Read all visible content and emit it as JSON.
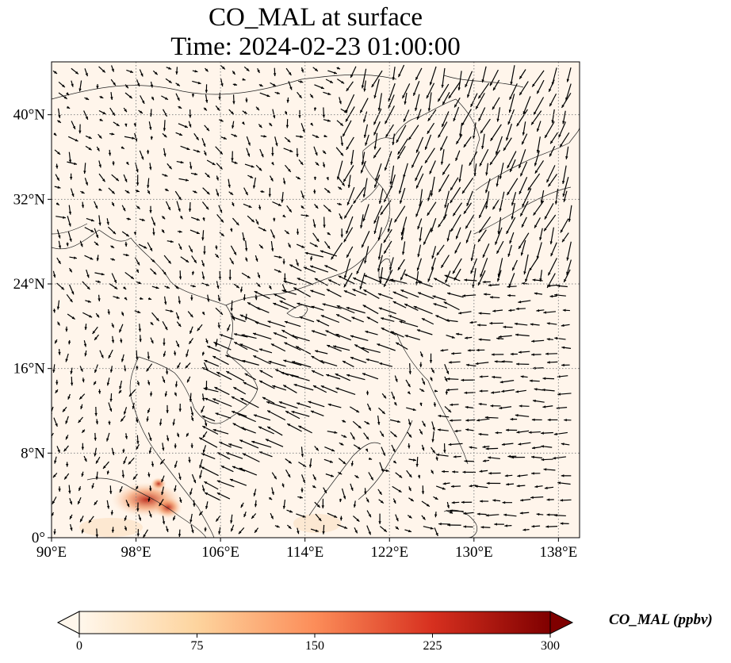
{
  "title": {
    "line1": "CO_MAL at surface",
    "line2": "Time: 2024-02-23 01:00:00"
  },
  "map": {
    "lon_range": [
      90,
      140
    ],
    "lat_range": [
      0,
      45
    ],
    "lon_ticks": [
      {
        "value": 90,
        "label": "90°E"
      },
      {
        "value": 98,
        "label": "98°E"
      },
      {
        "value": 106,
        "label": "106°E"
      },
      {
        "value": 114,
        "label": "114°E"
      },
      {
        "value": 122,
        "label": "122°E"
      },
      {
        "value": 130,
        "label": "130°E"
      },
      {
        "value": 138,
        "label": "138°E"
      }
    ],
    "lat_ticks": [
      {
        "value": 0,
        "label": "0°"
      },
      {
        "value": 8,
        "label": "8°N"
      },
      {
        "value": 16,
        "label": "16°N"
      },
      {
        "value": 24,
        "label": "24°N"
      },
      {
        "value": 32,
        "label": "32°N"
      },
      {
        "value": 40,
        "label": "40°N"
      }
    ],
    "gridlines": true,
    "background_color": "#fff5eb",
    "wind_vectors": "black arrows"
  },
  "colorbar": {
    "label": "CO_MAL (ppbv)",
    "min": 0,
    "max": 300,
    "extend": "both",
    "colormap": "OrRd",
    "ticks": [
      {
        "value": 0,
        "label": "0"
      },
      {
        "value": 75,
        "label": "75"
      },
      {
        "value": 150,
        "label": "150"
      },
      {
        "value": 225,
        "label": "225"
      },
      {
        "value": 300,
        "label": "300"
      }
    ]
  }
}
